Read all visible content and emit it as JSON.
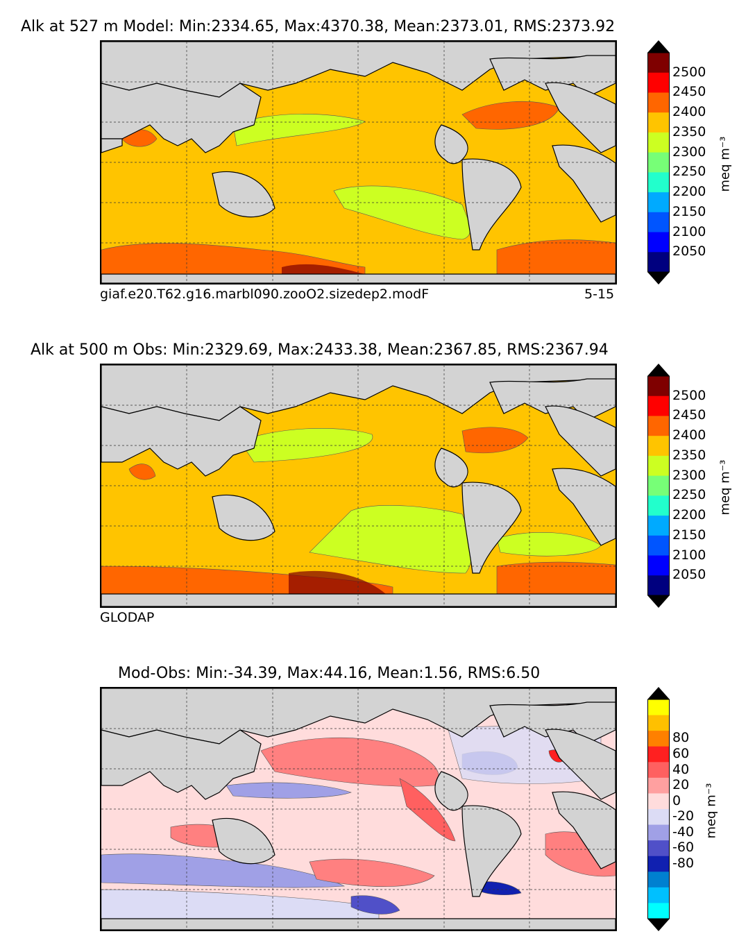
{
  "panels": [
    {
      "title": "Alk at 527 m Model: Min:2334.65, Max:4370.38, Mean:2373.01, RMS:2373.92",
      "caption_left": "giaf.e20.T62.g16.marbl090.zooO2.sizedep2.modF",
      "caption_right": "5-15",
      "colorbar": {
        "ticks": [
          "2500",
          "2450",
          "2400",
          "2350",
          "2300",
          "2250",
          "2200",
          "2150",
          "2100",
          "2050"
        ],
        "colors": [
          "#7f0000",
          "#ff0000",
          "#ff6600",
          "#ffc400",
          "#ccff22",
          "#77ff77",
          "#22ffcc",
          "#00aaff",
          "#0055ff",
          "#0000ff",
          "#00007f"
        ],
        "extend_top": "#000000",
        "extend_bottom": "#000000",
        "unit": "meq m⁻³"
      }
    },
    {
      "title": "Alk at 500 m Obs: Min:2329.69, Max:2433.38, Mean:2367.85, RMS:2367.94",
      "caption_left": "GLODAP",
      "caption_right": "",
      "colorbar": {
        "ticks": [
          "2500",
          "2450",
          "2400",
          "2350",
          "2300",
          "2250",
          "2200",
          "2150",
          "2100",
          "2050"
        ],
        "colors": [
          "#7f0000",
          "#ff0000",
          "#ff6600",
          "#ffc400",
          "#ccff22",
          "#77ff77",
          "#22ffcc",
          "#00aaff",
          "#0055ff",
          "#0000ff",
          "#00007f"
        ],
        "extend_top": "#000000",
        "extend_bottom": "#000000",
        "unit": "meq m⁻³"
      }
    },
    {
      "title": "Mod-Obs: Min:-34.39, Max:44.16, Mean:1.56, RMS:6.50",
      "caption_left": "",
      "caption_right": "",
      "colorbar": {
        "ticks": [
          "80",
          "60",
          "40",
          "20",
          "0",
          "-20",
          "-40",
          "-60",
          "-80"
        ],
        "colors": [
          "#ffff00",
          "#ffc000",
          "#ff8000",
          "#ff2020",
          "#ff6060",
          "#ffa0a0",
          "#ffdcdc",
          "#dcdcf5",
          "#a0a0e6",
          "#5050c8",
          "#1020b0",
          "#0080d0",
          "#00c0ff",
          "#00ffff"
        ],
        "extend_top": "#000000",
        "extend_bottom": "#000000",
        "unit": "meq m⁻³"
      }
    }
  ],
  "colors": {
    "land": "#d3d3d3",
    "coast": "#000000",
    "ocean_model": "#ffc400",
    "diff_base": "#ffdcdc"
  }
}
